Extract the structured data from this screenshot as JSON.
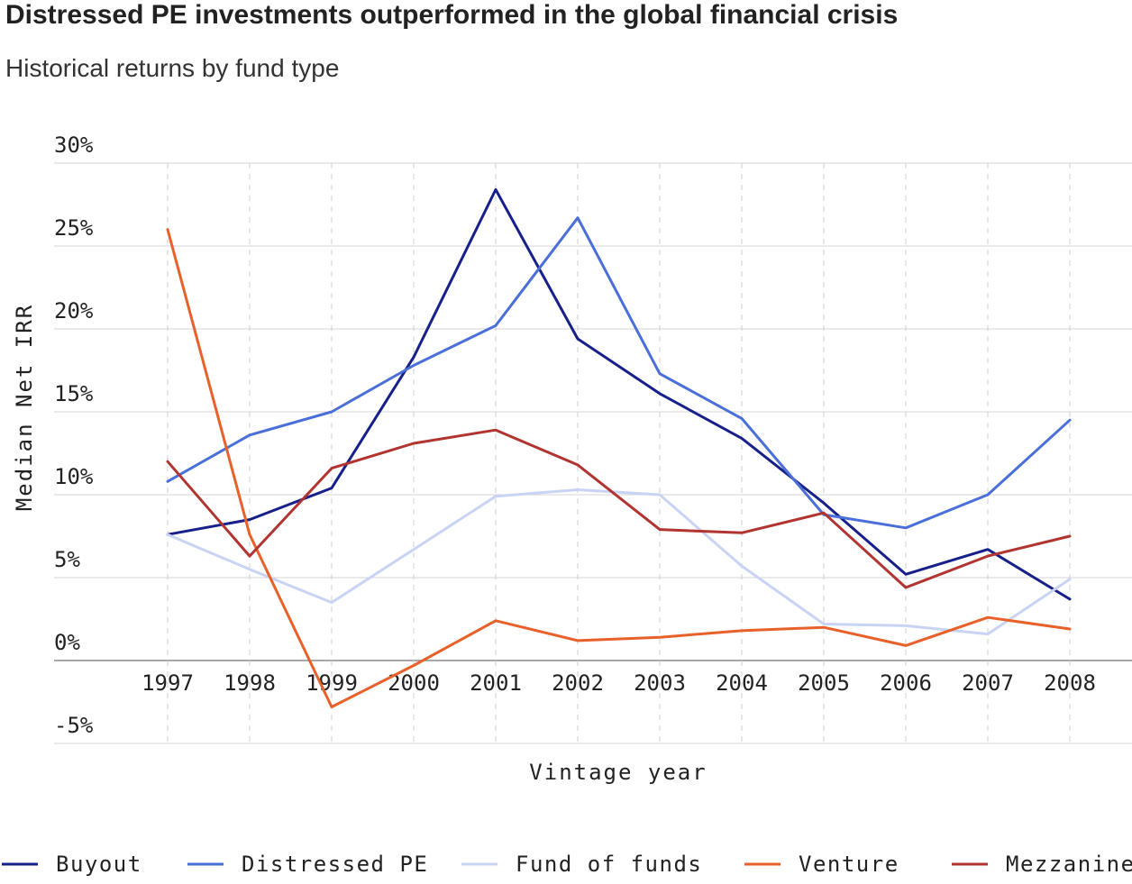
{
  "chart_data": {
    "type": "line",
    "title": "Distressed PE investments outperformed in the global financial crisis",
    "subtitle": "Historical returns by fund type",
    "xlabel": "Vintage year",
    "ylabel": "Median Net IRR",
    "ylim": [
      -5,
      30
    ],
    "yticks": [
      -5,
      0,
      5,
      10,
      15,
      20,
      25,
      30
    ],
    "ytick_labels": [
      "-5%",
      "0%",
      "5%",
      "10%",
      "15%",
      "20%",
      "25%",
      "30%"
    ],
    "x": [
      1997,
      1998,
      1999,
      2000,
      2001,
      2002,
      2003,
      2004,
      2005,
      2006,
      2007,
      2008
    ],
    "x_labels": [
      "1997",
      "1998",
      "1999",
      "2000",
      "2001",
      "2002",
      "2003",
      "2004",
      "2005",
      "2006",
      "2007",
      "2008"
    ],
    "grid": true,
    "legend_position": "bottom",
    "series": [
      {
        "name": "Buyout",
        "color": "#17208a",
        "values": [
          7.6,
          8.5,
          10.4,
          18.3,
          28.4,
          19.4,
          16.1,
          13.4,
          9.5,
          5.2,
          6.7,
          3.7
        ]
      },
      {
        "name": "Distressed PE",
        "color": "#4a6fd8",
        "values": [
          10.8,
          13.6,
          15.0,
          17.8,
          20.2,
          26.7,
          17.3,
          14.6,
          8.8,
          8.0,
          10.0,
          14.5
        ]
      },
      {
        "name": "Fund of funds",
        "color": "#c9d3f3",
        "values": [
          7.6,
          5.5,
          3.5,
          6.7,
          9.9,
          10.3,
          10.0,
          5.7,
          2.2,
          2.1,
          1.6,
          4.9
        ]
      },
      {
        "name": "Venture",
        "color": "#e8612a",
        "values": [
          26.0,
          7.6,
          -2.8,
          -0.3,
          2.4,
          1.2,
          1.4,
          1.8,
          2.0,
          0.9,
          2.6,
          1.9
        ]
      },
      {
        "name": "Mezzanine",
        "color": "#b23430",
        "values": [
          12.0,
          6.3,
          11.6,
          13.1,
          13.9,
          11.8,
          7.9,
          7.7,
          8.9,
          4.4,
          6.3,
          7.5
        ]
      }
    ]
  }
}
